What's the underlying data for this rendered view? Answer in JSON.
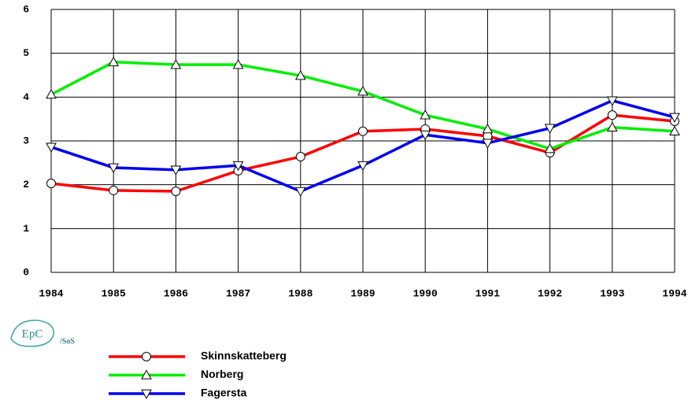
{
  "chart_data": {
    "type": "line",
    "x": [
      1984,
      1985,
      1986,
      1987,
      1988,
      1989,
      1990,
      1991,
      1992,
      1993,
      1994
    ],
    "xlim": [
      1984,
      1994
    ],
    "xticks": [
      1984,
      1985,
      1986,
      1987,
      1988,
      1989,
      1990,
      1991,
      1992,
      1993,
      1994
    ],
    "ylim": [
      0,
      6
    ],
    "yticks": [
      0,
      1,
      2,
      3,
      4,
      5,
      6
    ],
    "grid": true,
    "series": [
      {
        "name": "Skinnskatteberg",
        "color": "#ff0000",
        "marker": "circle",
        "values": [
          2.03,
          1.87,
          1.85,
          2.32,
          2.64,
          3.22,
          3.27,
          3.11,
          2.73,
          3.59,
          3.45
        ]
      },
      {
        "name": "Norberg",
        "color": "#00ee00",
        "marker": "triangle-up",
        "values": [
          4.06,
          4.8,
          4.74,
          4.74,
          4.49,
          4.13,
          3.59,
          3.27,
          2.82,
          3.31,
          3.22
        ]
      },
      {
        "name": "Fagersta",
        "color": "#0000ee",
        "marker": "triangle-down",
        "values": [
          2.86,
          2.39,
          2.34,
          2.44,
          1.85,
          2.44,
          3.14,
          2.95,
          3.29,
          3.92,
          3.54
        ]
      }
    ],
    "logo": {
      "text": "EpC",
      "suffix": "/SoS"
    }
  }
}
